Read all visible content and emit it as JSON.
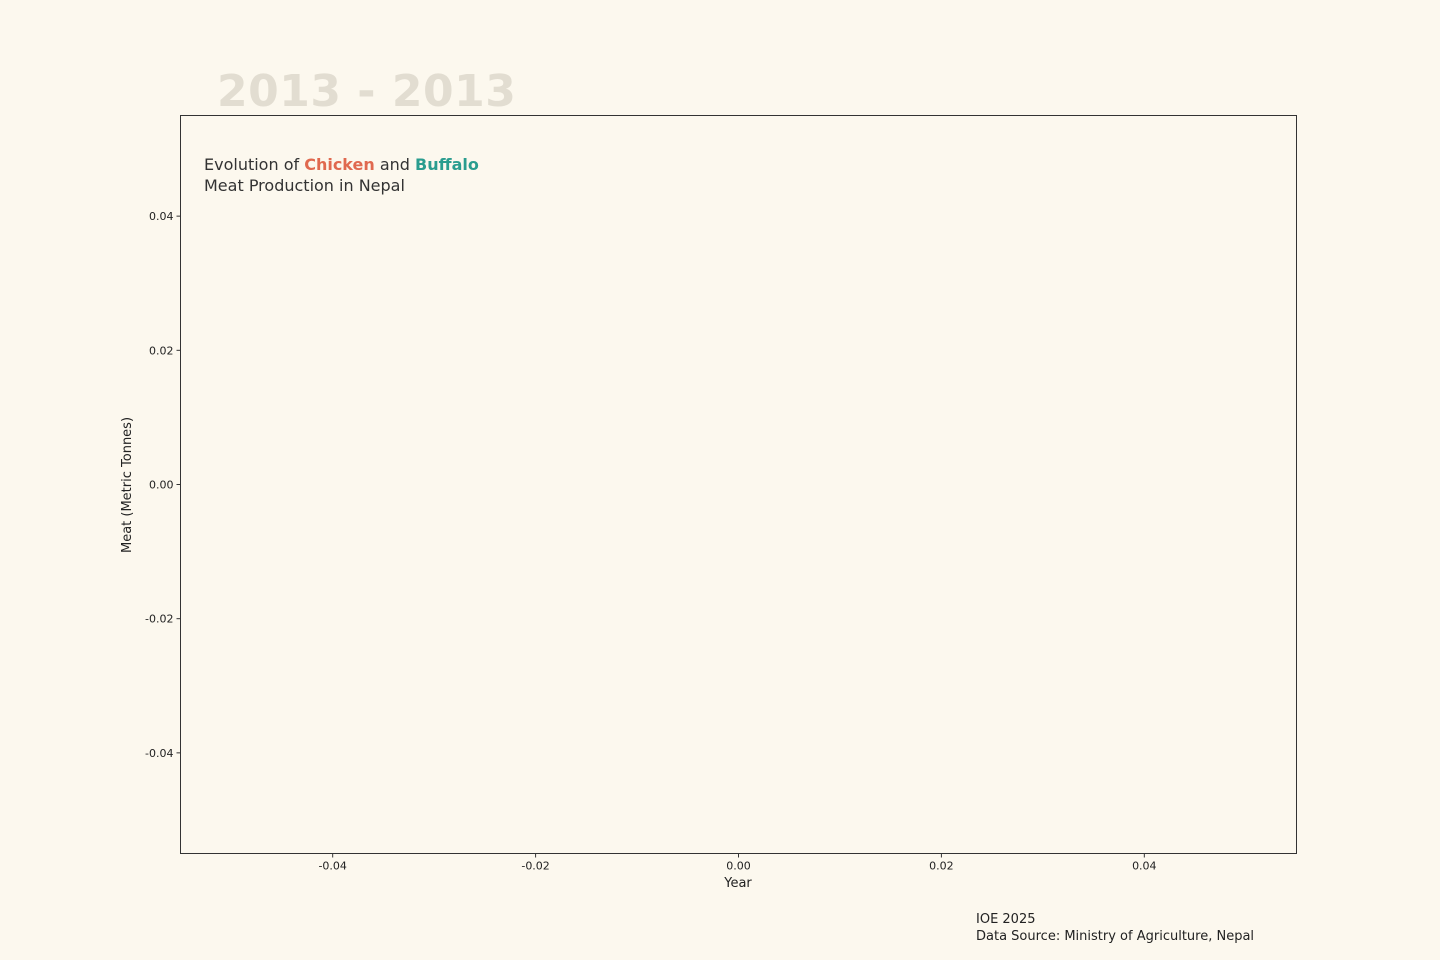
{
  "chart_data": {
    "type": "line",
    "year_range": "2013 - 2013",
    "title": {
      "part1": "Evolution  of ",
      "chicken": "Chicken",
      "part2": " and ",
      "buffalo": "Buffalo",
      "line2": "Meat Production in Nepal"
    },
    "xlabel": "Year",
    "ylabel": "Meat (Metric Tonnes)",
    "xlim": [
      -0.055,
      0.055
    ],
    "ylim": [
      -0.055,
      0.055
    ],
    "x_ticks": [
      -0.04,
      -0.02,
      0.0,
      0.02,
      0.04
    ],
    "x_tick_labels": [
      "-0.04",
      "-0.02",
      "0.00",
      "0.02",
      "0.04"
    ],
    "y_ticks": [
      -0.04,
      -0.02,
      0.0,
      0.02,
      0.04
    ],
    "y_tick_labels": [
      "-0.04",
      "-0.02",
      "0.00",
      "0.02",
      "0.04"
    ],
    "grid": false,
    "series": [
      {
        "name": "Chicken",
        "color": "#e0694f",
        "x": [],
        "values": []
      },
      {
        "name": "Buffalo",
        "color": "#2a9d8f",
        "x": [],
        "values": []
      }
    ]
  },
  "footer": {
    "line1": "IOE 2025",
    "line2": "Data Source: Ministry of Agriculture, Nepal"
  },
  "colors": {
    "background": "#fcf8ee",
    "chicken": "#e0694f",
    "buffalo": "#2a9d8f",
    "year_range": "#e2ddd1"
  }
}
